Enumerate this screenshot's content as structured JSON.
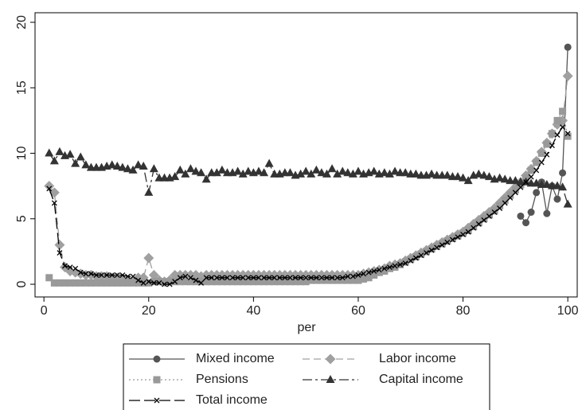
{
  "chart_data": {
    "type": "line",
    "x_label": "per",
    "x": [
      1,
      2,
      3,
      4,
      5,
      6,
      7,
      8,
      9,
      10,
      11,
      12,
      13,
      14,
      15,
      16,
      17,
      18,
      19,
      20,
      21,
      22,
      23,
      24,
      25,
      26,
      27,
      28,
      29,
      30,
      31,
      32,
      33,
      34,
      35,
      36,
      37,
      38,
      39,
      40,
      41,
      42,
      43,
      44,
      45,
      46,
      47,
      48,
      49,
      50,
      51,
      52,
      53,
      54,
      55,
      56,
      57,
      58,
      59,
      60,
      61,
      62,
      63,
      64,
      65,
      66,
      67,
      68,
      69,
      70,
      71,
      72,
      73,
      74,
      75,
      76,
      77,
      78,
      79,
      80,
      81,
      82,
      83,
      84,
      85,
      86,
      87,
      88,
      89,
      90,
      91,
      92,
      93,
      94,
      95,
      96,
      97,
      98,
      99,
      100
    ],
    "xlim": [
      -1.7,
      101.8
    ],
    "xticks": [
      0,
      20,
      40,
      60,
      80,
      100
    ],
    "ylim": [
      -0.97,
      20.73
    ],
    "yticks": [
      0,
      5,
      10,
      15,
      20
    ],
    "legend_position": "bottom",
    "series": [
      {
        "name": "Mixed income",
        "color": "#555555",
        "marker": "circle",
        "linestyle": "solid",
        "values": [
          null,
          null,
          null,
          null,
          null,
          null,
          null,
          null,
          null,
          null,
          null,
          null,
          null,
          null,
          null,
          null,
          null,
          null,
          null,
          null,
          null,
          null,
          null,
          null,
          null,
          null,
          null,
          null,
          null,
          null,
          null,
          null,
          null,
          null,
          null,
          null,
          null,
          null,
          null,
          null,
          null,
          null,
          null,
          null,
          null,
          null,
          null,
          null,
          null,
          null,
          null,
          null,
          null,
          null,
          null,
          null,
          null,
          null,
          null,
          null,
          null,
          null,
          null,
          null,
          null,
          null,
          null,
          null,
          null,
          null,
          null,
          null,
          null,
          null,
          null,
          null,
          null,
          null,
          null,
          null,
          null,
          null,
          null,
          null,
          null,
          null,
          null,
          null,
          null,
          null,
          5.2,
          4.7,
          5.5,
          7.0,
          7.8,
          5.4,
          7.5,
          6.5,
          8.5,
          18.1
        ]
      },
      {
        "name": "Labor income",
        "color": "#a0a0a0",
        "marker": "diamond",
        "linestyle": "dashed",
        "values": [
          7.5,
          7.0,
          3.0,
          1.3,
          1.0,
          0.9,
          0.8,
          0.7,
          0.7,
          0.6,
          0.6,
          0.6,
          0.5,
          0.5,
          0.4,
          0.3,
          0.3,
          0.5,
          0.5,
          2.0,
          0.7,
          0.3,
          0.2,
          0.3,
          0.7,
          0.7,
          0.7,
          0.7,
          0.7,
          0.6,
          0.7,
          0.7,
          0.7,
          0.7,
          0.7,
          0.7,
          0.7,
          0.7,
          0.7,
          0.7,
          0.7,
          0.7,
          0.7,
          0.7,
          0.7,
          0.7,
          0.7,
          0.7,
          0.7,
          0.7,
          0.7,
          0.7,
          0.7,
          0.7,
          0.7,
          0.7,
          0.7,
          0.7,
          0.7,
          0.7,
          0.8,
          0.9,
          1.0,
          1.1,
          1.2,
          1.4,
          1.5,
          1.6,
          1.8,
          2.0,
          2.2,
          2.4,
          2.6,
          2.8,
          3.0,
          3.2,
          3.4,
          3.6,
          3.8,
          4.0,
          4.3,
          4.6,
          4.9,
          5.2,
          5.5,
          5.8,
          6.2,
          6.6,
          7.0,
          7.4,
          7.8,
          8.3,
          8.8,
          9.4,
          10.1,
          10.8,
          11.5,
          12.2,
          12.5,
          15.9
        ]
      },
      {
        "name": "Pensions",
        "color": "#999999",
        "marker": "square",
        "linestyle": "dotted",
        "values": [
          0.5,
          0.1,
          0.1,
          0.1,
          0.1,
          0.1,
          0.1,
          0.1,
          0.1,
          0.1,
          0.1,
          0.1,
          0.1,
          0.1,
          0.1,
          0.1,
          0.1,
          0.1,
          0.1,
          0.1,
          0.2,
          0.2,
          0.2,
          0.2,
          0.2,
          0.2,
          0.2,
          0.2,
          0.2,
          0.2,
          0.2,
          0.2,
          0.2,
          0.2,
          0.2,
          0.2,
          0.2,
          0.2,
          0.2,
          0.2,
          0.2,
          0.2,
          0.2,
          0.2,
          0.2,
          0.2,
          0.2,
          0.2,
          0.2,
          0.2,
          0.3,
          0.3,
          0.3,
          0.3,
          0.3,
          0.3,
          0.3,
          0.3,
          0.3,
          0.3,
          0.4,
          0.5,
          0.7,
          0.9,
          1.0,
          1.2,
          1.3,
          1.5,
          1.7,
          1.9,
          2.1,
          2.3,
          2.5,
          2.7,
          2.9,
          3.1,
          3.3,
          3.5,
          3.7,
          3.9,
          4.1,
          4.4,
          4.7,
          5.0,
          5.3,
          5.6,
          6.0,
          6.4,
          6.8,
          7.2,
          7.6,
          8.1,
          8.7,
          9.3,
          10.0,
          10.7,
          11.5,
          12.5,
          13.2,
          11.3
        ]
      },
      {
        "name": "Capital income",
        "color": "#333333",
        "marker": "triangle",
        "linestyle": "dashdot",
        "values": [
          10.0,
          9.4,
          10.1,
          9.8,
          9.9,
          9.2,
          9.7,
          9.1,
          8.9,
          8.9,
          8.9,
          9.0,
          9.1,
          9.0,
          8.9,
          8.8,
          8.7,
          9.1,
          9.0,
          7.0,
          8.8,
          8.1,
          8.1,
          8.1,
          8.2,
          8.7,
          8.4,
          8.8,
          8.6,
          8.5,
          8.0,
          8.5,
          8.5,
          8.7,
          8.5,
          8.5,
          8.6,
          8.4,
          8.6,
          8.5,
          8.6,
          8.5,
          9.2,
          8.4,
          8.4,
          8.5,
          8.5,
          8.3,
          8.4,
          8.6,
          8.4,
          8.7,
          8.5,
          8.4,
          8.8,
          8.4,
          8.6,
          8.5,
          8.4,
          8.6,
          8.4,
          8.5,
          8.6,
          8.4,
          8.5,
          8.4,
          8.6,
          8.5,
          8.5,
          8.4,
          8.4,
          8.3,
          8.3,
          8.4,
          8.3,
          8.3,
          8.3,
          8.2,
          8.2,
          8.1,
          7.9,
          8.3,
          8.4,
          8.3,
          8.2,
          8.0,
          8.1,
          8.0,
          7.9,
          7.9,
          7.8,
          7.8,
          7.7,
          7.7,
          7.6,
          7.6,
          7.5,
          7.5,
          7.4,
          6.1
        ]
      },
      {
        "name": "Total income",
        "color": "#000000",
        "marker": "x",
        "linestyle": "longdash",
        "values": [
          7.3,
          6.2,
          2.4,
          1.4,
          1.3,
          1.2,
          0.9,
          0.8,
          0.8,
          0.7,
          0.7,
          0.7,
          0.7,
          0.7,
          0.7,
          0.6,
          0.6,
          0.3,
          0.1,
          0.2,
          0.1,
          0.1,
          0.0,
          0.0,
          0.2,
          0.5,
          0.6,
          0.5,
          0.3,
          0.1,
          0.5,
          0.5,
          0.5,
          0.5,
          0.5,
          0.5,
          0.5,
          0.5,
          0.5,
          0.5,
          0.5,
          0.5,
          0.5,
          0.5,
          0.5,
          0.5,
          0.5,
          0.5,
          0.5,
          0.5,
          0.5,
          0.5,
          0.5,
          0.5,
          0.5,
          0.5,
          0.5,
          0.6,
          0.6,
          0.7,
          0.8,
          0.9,
          1.0,
          1.1,
          1.2,
          1.3,
          1.4,
          1.5,
          1.6,
          1.8,
          2.0,
          2.2,
          2.4,
          2.6,
          2.8,
          3.0,
          3.2,
          3.4,
          3.6,
          3.8,
          4.0,
          4.3,
          4.6,
          4.9,
          5.2,
          5.5,
          5.8,
          6.2,
          6.6,
          7.0,
          7.4,
          7.8,
          8.2,
          8.7,
          9.3,
          9.9,
          10.6,
          11.4,
          12.0,
          11.5
        ]
      }
    ]
  }
}
